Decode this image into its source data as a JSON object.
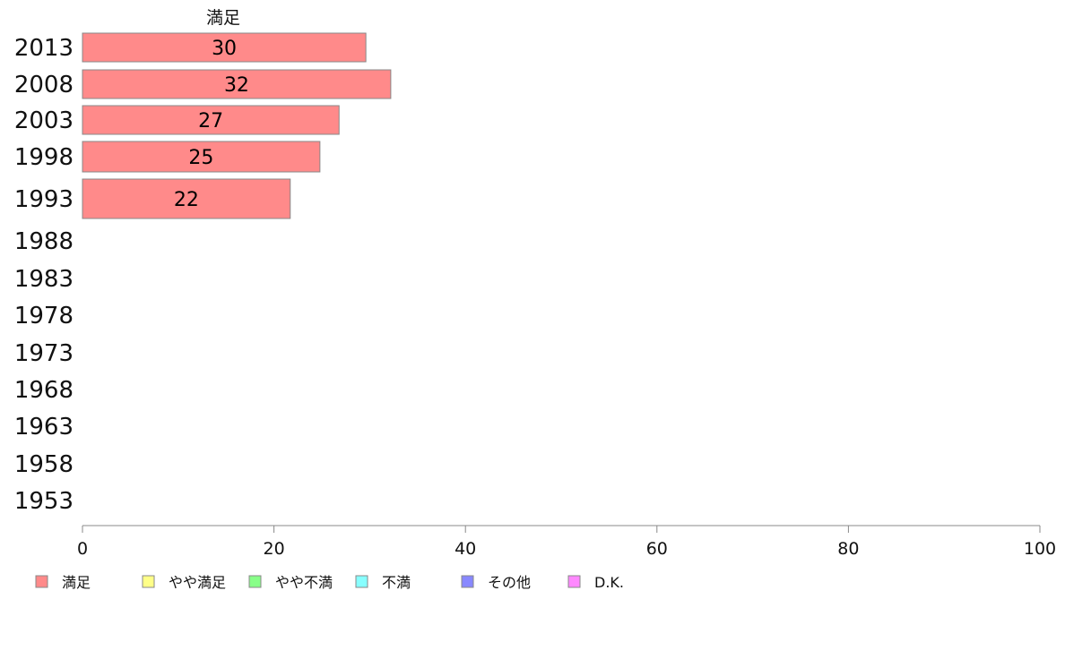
{
  "chart_data": {
    "type": "bar",
    "orientation": "horizontal",
    "stacked": true,
    "column_label": "満足",
    "categories": [
      "2013",
      "2008",
      "2003",
      "1998",
      "1993",
      "1988",
      "1983",
      "1978",
      "1973",
      "1968",
      "1963",
      "1958",
      "1953"
    ],
    "series": [
      {
        "name": "満足",
        "color": "#ff8a8a",
        "values": [
          30,
          32,
          27,
          25,
          22,
          null,
          null,
          null,
          null,
          null,
          null,
          null,
          null
        ]
      }
    ],
    "bar_labels": [
      "30",
      "32",
      "27",
      "25",
      "22"
    ],
    "bar_values_exact": [
      29.6,
      32.2,
      26.8,
      24.8,
      21.7
    ],
    "xlim": [
      0,
      100
    ],
    "xticks": [
      0,
      20,
      40,
      60,
      80,
      100
    ],
    "legend": {
      "position": "bottom-left",
      "entries": [
        {
          "label": "満足",
          "color": "#ff8a8a"
        },
        {
          "label": "やや満足",
          "color": "#ffff88"
        },
        {
          "label": "やや不満",
          "color": "#88ff88"
        },
        {
          "label": "不満",
          "color": "#88ffff"
        },
        {
          "label": "その他",
          "color": "#8888ff"
        },
        {
          "label": "D.K.",
          "color": "#ff88ff"
        }
      ]
    }
  }
}
